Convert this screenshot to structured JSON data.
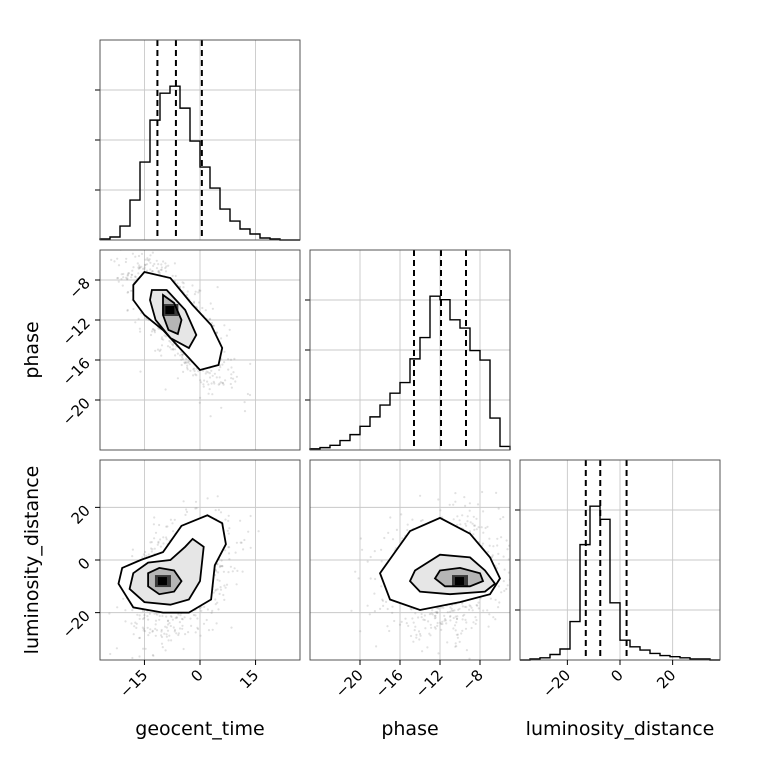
{
  "chart_data": {
    "type": "corner",
    "parameters": [
      "geocent_time",
      "phase",
      "luminosity_distance"
    ],
    "axes": {
      "geocent_time": {
        "range": [
          -27,
          27
        ],
        "ticks": [
          -15,
          0,
          15
        ],
        "tick_labels": [
          "−15",
          "0",
          "15"
        ]
      },
      "phase": {
        "range": [
          -25,
          -5
        ],
        "ticks": [
          -20,
          -16,
          -12,
          -8
        ],
        "tick_labels": [
          "−20",
          "−16",
          "−12",
          "−8"
        ]
      },
      "luminosity_distance": {
        "range": [
          -38,
          38
        ],
        "ticks": [
          -20,
          0,
          20
        ],
        "tick_labels": [
          "−20",
          "0",
          "20"
        ]
      }
    },
    "marginals": {
      "geocent_time": {
        "bin_edges": [
          -27,
          -24.3,
          -21.6,
          -18.9,
          -16.2,
          -13.5,
          -10.8,
          -8.1,
          -5.4,
          -2.7,
          0,
          2.7,
          5.4,
          8.1,
          10.8,
          13.5,
          16.2,
          18.9,
          21.6,
          24.3,
          27
        ],
        "counts": [
          1,
          3,
          14,
          40,
          78,
          120,
          147,
          154,
          132,
          99,
          73,
          52,
          31,
          19,
          11,
          6,
          2,
          1,
          0,
          0
        ],
        "quantiles": [
          -11.5,
          -6.5,
          0.5
        ]
      },
      "phase": {
        "bin_edges": [
          -25,
          -24,
          -23,
          -22,
          -21,
          -20,
          -19,
          -18,
          -17,
          -16,
          -15,
          -14,
          -13,
          -12,
          -11,
          -10,
          -9,
          -8,
          -7,
          -6,
          -5
        ],
        "counts": [
          1,
          2,
          4,
          8,
          13,
          20,
          28,
          38,
          48,
          57,
          77,
          95,
          130,
          127,
          110,
          103,
          84,
          76,
          27,
          3
        ],
        "quantiles": [
          -14.6,
          -11.9,
          -9.4
        ]
      },
      "luminosity_distance": {
        "bin_edges": [
          -38,
          -34.2,
          -30.4,
          -26.6,
          -22.8,
          -19,
          -15.2,
          -11.4,
          -7.6,
          -3.8,
          0,
          3.8,
          7.6,
          11.4,
          15.2,
          19,
          22.8,
          26.6,
          30.4,
          34.2,
          38
        ],
        "counts": [
          0,
          1,
          2,
          5,
          10,
          35,
          105,
          140,
          128,
          52,
          18,
          12,
          9,
          6,
          4,
          3,
          2,
          1,
          1,
          0
        ],
        "quantiles": [
          -13,
          -7.5,
          2.5
        ]
      }
    },
    "pairs": [
      {
        "x": "geocent_time",
        "y": "phase",
        "mean": [
          -6,
          -12
        ],
        "sd": [
          6.5,
          3.2
        ],
        "rho": -0.75,
        "peak": [
          -8,
          -11
        ],
        "contours": [
          [
            [
              -10,
              -9.5
            ],
            [
              -7,
              -10.3
            ],
            [
              -5,
              -12
            ],
            [
              -6,
              -13.4
            ],
            [
              -8.5,
              -13
            ],
            [
              -10,
              -11.5
            ]
          ],
          [
            [
              -13,
              -9
            ],
            [
              -9,
              -9
            ],
            [
              -4,
              -11
            ],
            [
              -1,
              -13.5
            ],
            [
              -3,
              -14.8
            ],
            [
              -8,
              -13.8
            ],
            [
              -12,
              -12
            ],
            [
              -13.5,
              -10
            ]
          ],
          [
            [
              -18,
              -8.5
            ],
            [
              -15,
              -7.2
            ],
            [
              -8,
              -7.8
            ],
            [
              -2,
              -10.5
            ],
            [
              3,
              -12.5
            ],
            [
              6,
              -14.8
            ],
            [
              5,
              -16.5
            ],
            [
              0,
              -17
            ],
            [
              -5,
              -15
            ],
            [
              -10,
              -13
            ],
            [
              -15,
              -11.5
            ],
            [
              -18,
              -10
            ]
          ]
        ]
      },
      {
        "x": "geocent_time",
        "y": "luminosity_distance",
        "mean": [
          -5,
          -6
        ],
        "sd": [
          6.5,
          10.5
        ],
        "rho": 0.38,
        "peak": [
          -10,
          -8
        ],
        "contours": [
          [
            [
              -14,
              -5
            ],
            [
              -11,
              -3
            ],
            [
              -7,
              -4
            ],
            [
              -5,
              -8
            ],
            [
              -7,
              -12
            ],
            [
              -11,
              -13
            ],
            [
              -14,
              -10
            ]
          ],
          [
            [
              -18,
              -5
            ],
            [
              -14,
              -1
            ],
            [
              -8,
              0
            ],
            [
              -4,
              5
            ],
            [
              -2,
              8
            ],
            [
              1,
              5
            ],
            [
              0,
              -8
            ],
            [
              -3,
              -15
            ],
            [
              -8,
              -17
            ],
            [
              -15,
              -16
            ],
            [
              -19,
              -11
            ]
          ],
          [
            [
              -21,
              -3
            ],
            [
              -16,
              0
            ],
            [
              -10,
              3
            ],
            [
              -5,
              13
            ],
            [
              2,
              17
            ],
            [
              6,
              14
            ],
            [
              7,
              6
            ],
            [
              4,
              -2
            ],
            [
              3,
              -15
            ],
            [
              -3,
              -20
            ],
            [
              -10,
              -20
            ],
            [
              -18,
              -18
            ],
            [
              -22,
              -9
            ]
          ]
        ]
      },
      {
        "x": "phase",
        "y": "luminosity_distance",
        "mean": [
          -11.5,
          -6
        ],
        "sd": [
          2.8,
          10.5
        ],
        "rho": 0.1,
        "peak": [
          -10,
          -8
        ],
        "contours": [
          [
            [
              -12,
              -4
            ],
            [
              -10,
              -3
            ],
            [
              -8,
              -5
            ],
            [
              -7.7,
              -8
            ],
            [
              -9,
              -10
            ],
            [
              -11.5,
              -10
            ],
            [
              -12.5,
              -7
            ]
          ],
          [
            [
              -14.5,
              -4
            ],
            [
              -12,
              2
            ],
            [
              -9,
              1
            ],
            [
              -7.5,
              -4
            ],
            [
              -6.5,
              -9
            ],
            [
              -7.5,
              -12
            ],
            [
              -11,
              -13
            ],
            [
              -14,
              -12
            ],
            [
              -15,
              -8
            ]
          ],
          [
            [
              -16.5,
              3
            ],
            [
              -15,
              11
            ],
            [
              -12,
              16
            ],
            [
              -9,
              10
            ],
            [
              -7,
              1
            ],
            [
              -6,
              -7
            ],
            [
              -7,
              -13
            ],
            [
              -10,
              -16
            ],
            [
              -14,
              -19
            ],
            [
              -17,
              -15
            ],
            [
              -18,
              -5
            ]
          ]
        ]
      }
    ],
    "xlabels": [
      "geocent_time",
      "phase",
      "luminosity_distance"
    ],
    "ylabels": [
      "phase",
      "luminosity_distance"
    ],
    "grid": true
  }
}
